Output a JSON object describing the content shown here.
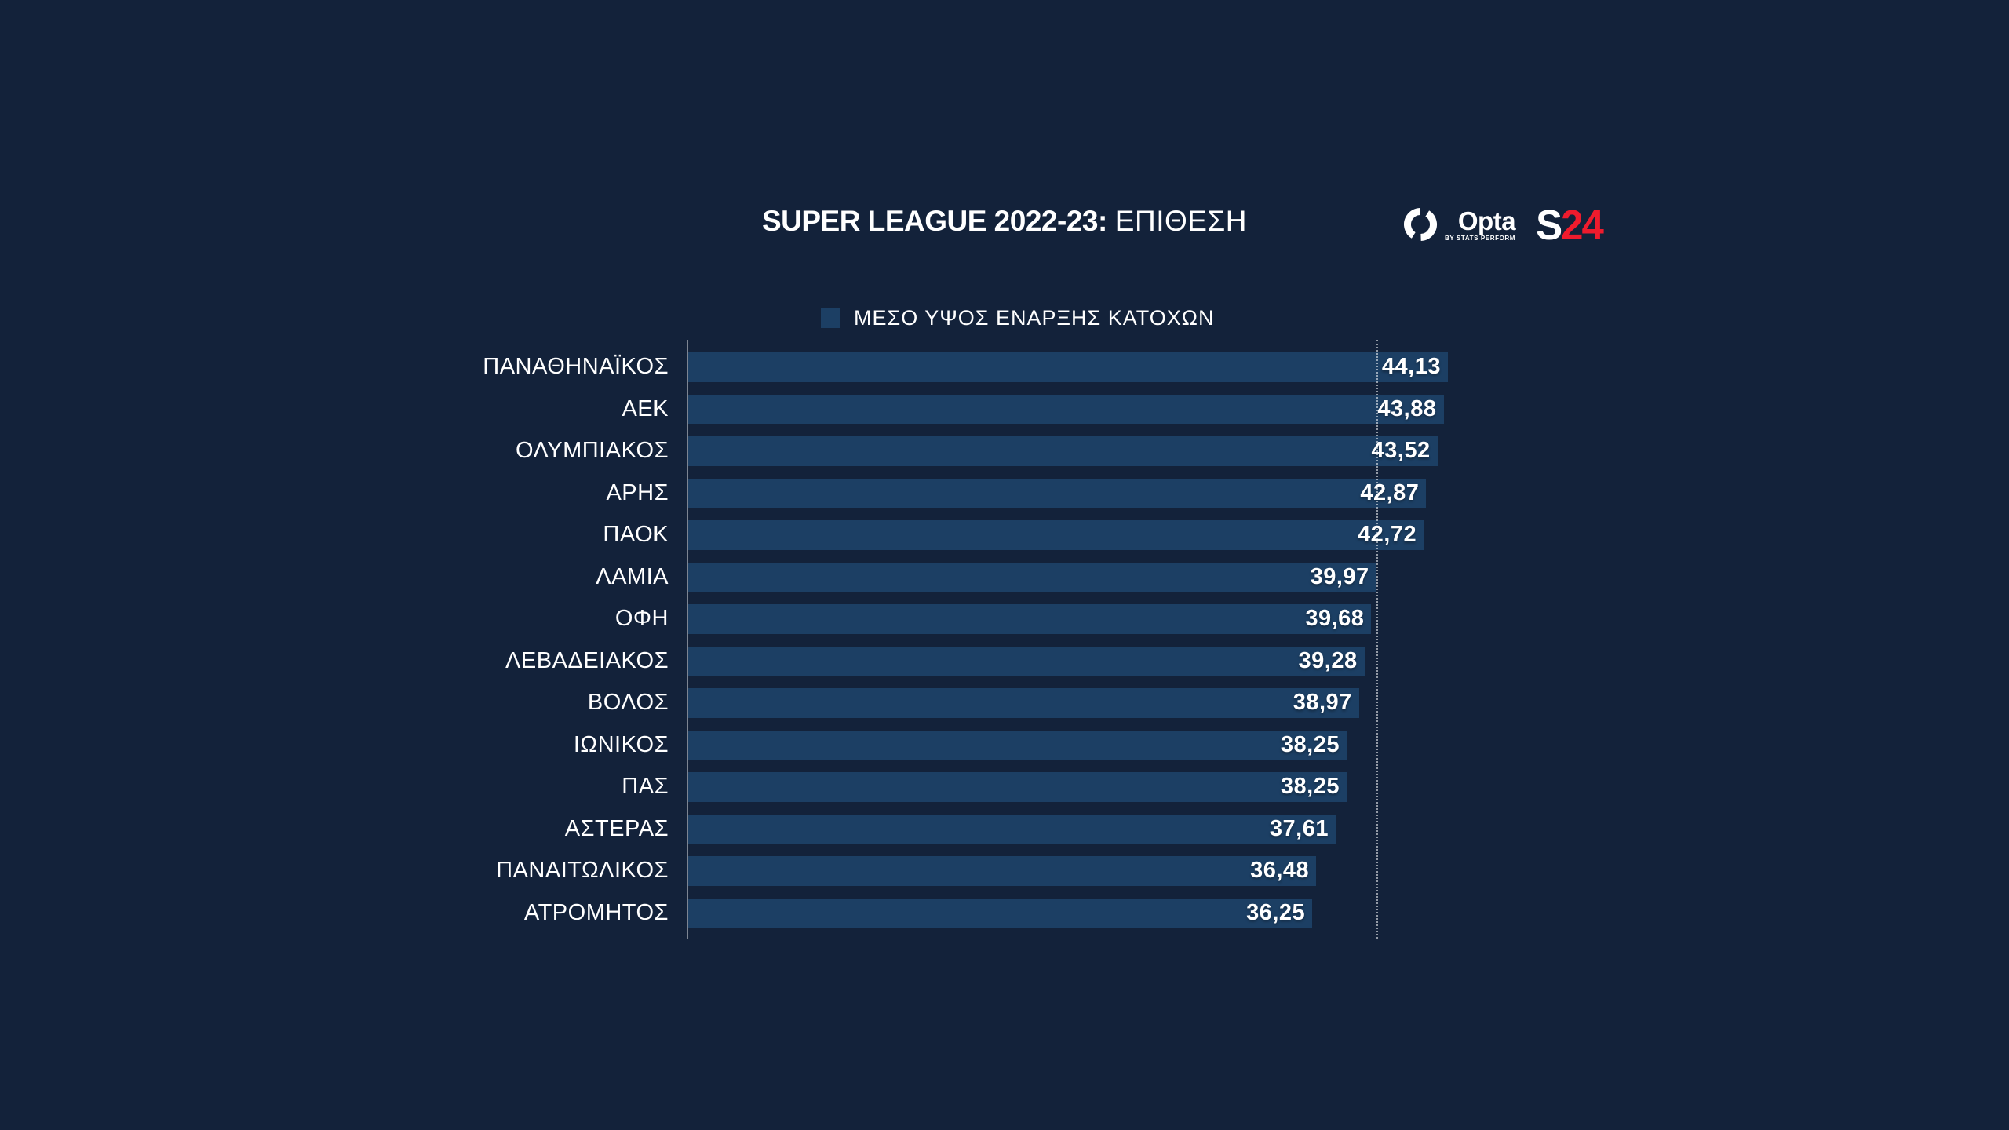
{
  "title": {
    "main": "SUPER LEAGUE 2022-23:",
    "sub": "ΕΠΙΘΕΣΗ"
  },
  "logos": {
    "opta": {
      "name": "Opta",
      "byline": "BY STATS PERFORM"
    },
    "s24": {
      "s": "S",
      "num": "24",
      "red": "#EF1B2D"
    }
  },
  "chart_data": {
    "type": "bar",
    "orientation": "horizontal",
    "title": "SUPER LEAGUE 2022-23: ΕΠΙΘΕΣΗ",
    "legend": "ΜΕΣΟ ΥΨΟΣ ΕΝΑΡΞΗΣ ΚΑΤΟΧΩΝ",
    "legend_position": "top",
    "categories": [
      "ΠΑΝΑΘΗΝΑΪΚΟΣ",
      "ΑΕΚ",
      "ΟΛΥΜΠΙΑΚΟΣ",
      "ΑΡΗΣ",
      "ΠΑΟΚ",
      "ΛΑΜΙΑ",
      "ΟΦΗ",
      "ΛΕΒΑΔΕΙΑΚΟΣ",
      "ΒΟΛΟΣ",
      "ΙΩΝΙΚΟΣ",
      "ΠΑΣ",
      "ΑΣΤΕΡΑΣ",
      "ΠΑΝΑΙΤΩΛΙΚΟΣ",
      "ΑΤΡΟΜΗΤΟΣ"
    ],
    "values": [
      44.13,
      43.88,
      43.52,
      42.87,
      42.72,
      39.97,
      39.68,
      39.28,
      38.97,
      38.25,
      38.25,
      37.61,
      36.48,
      36.25
    ],
    "value_labels": [
      "44,13",
      "43,88",
      "43,52",
      "42,87",
      "42,72",
      "39,97",
      "39,68",
      "39,28",
      "38,97",
      "38,25",
      "38,25",
      "37,61",
      "36,48",
      "36,25"
    ],
    "xlim": [
      0,
      44.13
    ],
    "gridline_at": 40,
    "grid": "single dotted vertical line",
    "bar_color": "#1C3F64",
    "background_color": "#13223A",
    "text_color": "#FFFFFF"
  }
}
